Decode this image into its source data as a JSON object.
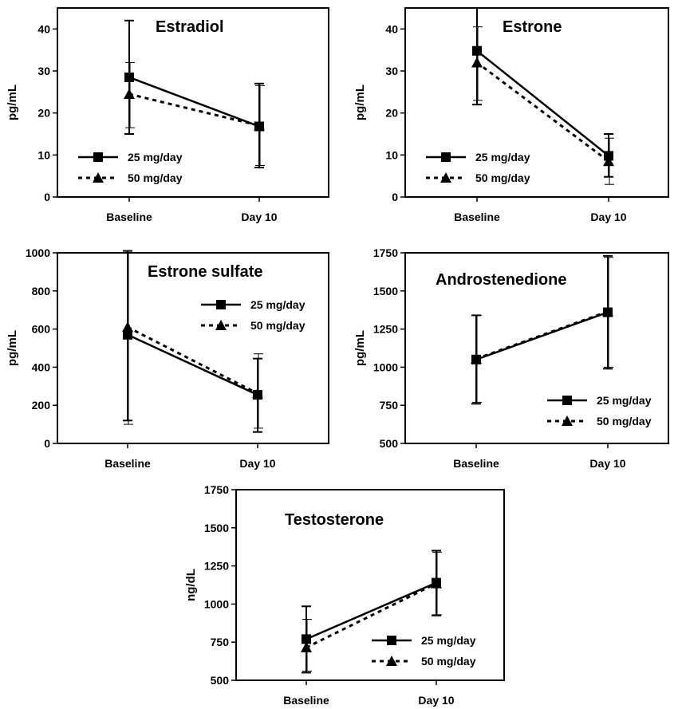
{
  "chart_data": [
    {
      "type": "line",
      "title": "Estradiol",
      "ylabel": "pg/mL",
      "categories": [
        "Baseline",
        "Day 10"
      ],
      "ylim": [
        0,
        45
      ],
      "yticks": [
        0,
        10,
        20,
        30,
        40
      ],
      "legend_position": "bottom-left",
      "series": [
        {
          "name": "25 mg/day",
          "values": [
            28.5,
            16.8
          ],
          "err_low": [
            15,
            7
          ],
          "err_high": [
            42,
            27
          ]
        },
        {
          "name": "50 mg/day",
          "values": [
            24.5,
            17
          ],
          "err_low": [
            16.5,
            7.5
          ],
          "err_high": [
            32,
            26.5
          ]
        }
      ]
    },
    {
      "type": "line",
      "title": "Estrone",
      "ylabel": "pg/mL",
      "categories": [
        "Baseline",
        "Day 10"
      ],
      "ylim": [
        0,
        45
      ],
      "yticks": [
        0,
        10,
        20,
        30,
        40
      ],
      "legend_position": "bottom-left",
      "series": [
        {
          "name": "25 mg/day",
          "values": [
            34.8,
            9.8
          ],
          "err_low": [
            22,
            4.8
          ],
          "err_high": [
            45,
            15
          ]
        },
        {
          "name": "50 mg/day",
          "values": [
            32,
            8.5
          ],
          "err_low": [
            23,
            3
          ],
          "err_high": [
            40.5,
            14
          ]
        }
      ]
    },
    {
      "type": "line",
      "title": "Estrone sulfate",
      "ylabel": "pg/mL",
      "categories": [
        "Baseline",
        "Day 10"
      ],
      "ylim": [
        0,
        1000
      ],
      "yticks": [
        0,
        200,
        400,
        600,
        800,
        1000
      ],
      "legend_position": "top-right",
      "series": [
        {
          "name": "25 mg/day",
          "values": [
            570,
            255
          ],
          "err_low": [
            120,
            60
          ],
          "err_high": [
            1010,
            445
          ]
        },
        {
          "name": "50 mg/day",
          "values": [
            610,
            262
          ],
          "err_low": [
            100,
            80
          ],
          "err_high": [
            1000,
            470
          ]
        }
      ]
    },
    {
      "type": "line",
      "title": "Androstenedione",
      "ylabel": "pg/mL",
      "categories": [
        "Baseline",
        "Day 10"
      ],
      "ylim": [
        500,
        1750
      ],
      "yticks": [
        500,
        750,
        1000,
        1250,
        1500,
        1750
      ],
      "legend_position": "bottom-right",
      "series": [
        {
          "name": "25 mg/day",
          "values": [
            1050,
            1360
          ],
          "err_low": [
            760,
            990
          ],
          "err_high": [
            1340,
            1730
          ]
        },
        {
          "name": "50 mg/day",
          "values": [
            1055,
            1365
          ],
          "err_low": [
            770,
            1000
          ],
          "err_high": [
            1340,
            1720
          ]
        }
      ]
    },
    {
      "type": "line",
      "title": "Testosterone",
      "ylabel": "ng/dL",
      "categories": [
        "Baseline",
        "Day 10"
      ],
      "ylim": [
        500,
        1750
      ],
      "yticks": [
        500,
        750,
        1000,
        1250,
        1500,
        1750
      ],
      "legend_position": "bottom-right",
      "series": [
        {
          "name": "25 mg/day",
          "values": [
            770,
            1140
          ],
          "err_low": [
            550,
            925
          ],
          "err_high": [
            985,
            1350
          ]
        },
        {
          "name": "50 mg/day",
          "values": [
            715,
            1135
          ],
          "err_low": [
            560,
            930
          ],
          "err_high": [
            900,
            1340
          ]
        }
      ]
    }
  ]
}
